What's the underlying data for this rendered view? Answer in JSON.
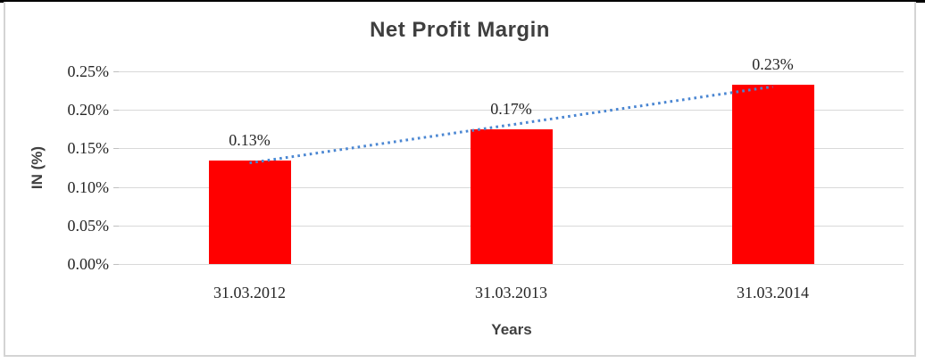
{
  "window": {
    "top_edge_color": "#000000",
    "frame_border_color": "#d4d4d4",
    "background_color": "#ffffff"
  },
  "chart_data": {
    "type": "bar",
    "title": "Net Profit Margin",
    "xlabel": "Years",
    "ylabel": "IN (%)",
    "categories": [
      "31.03.2012",
      "31.03.2013",
      "31.03.2014"
    ],
    "values": [
      0.134,
      0.175,
      0.233
    ],
    "data_labels": [
      "0.13%",
      "0.17%",
      "0.23%"
    ],
    "y_tick_labels": [
      "0.00%",
      "0.05%",
      "0.10%",
      "0.15%",
      "0.20%",
      "0.25%"
    ],
    "y_tick_values": [
      0,
      0.05,
      0.1,
      0.15,
      0.2,
      0.25
    ],
    "ylim": [
      0,
      0.25
    ],
    "grid": "horizontal",
    "legend": "none",
    "bar_color": "#ff0000",
    "gridline_color": "#d9d9d9",
    "trendline": {
      "type": "linear",
      "style": "dotted",
      "color": "#4a86d2",
      "series": "Net Profit Margin"
    }
  }
}
